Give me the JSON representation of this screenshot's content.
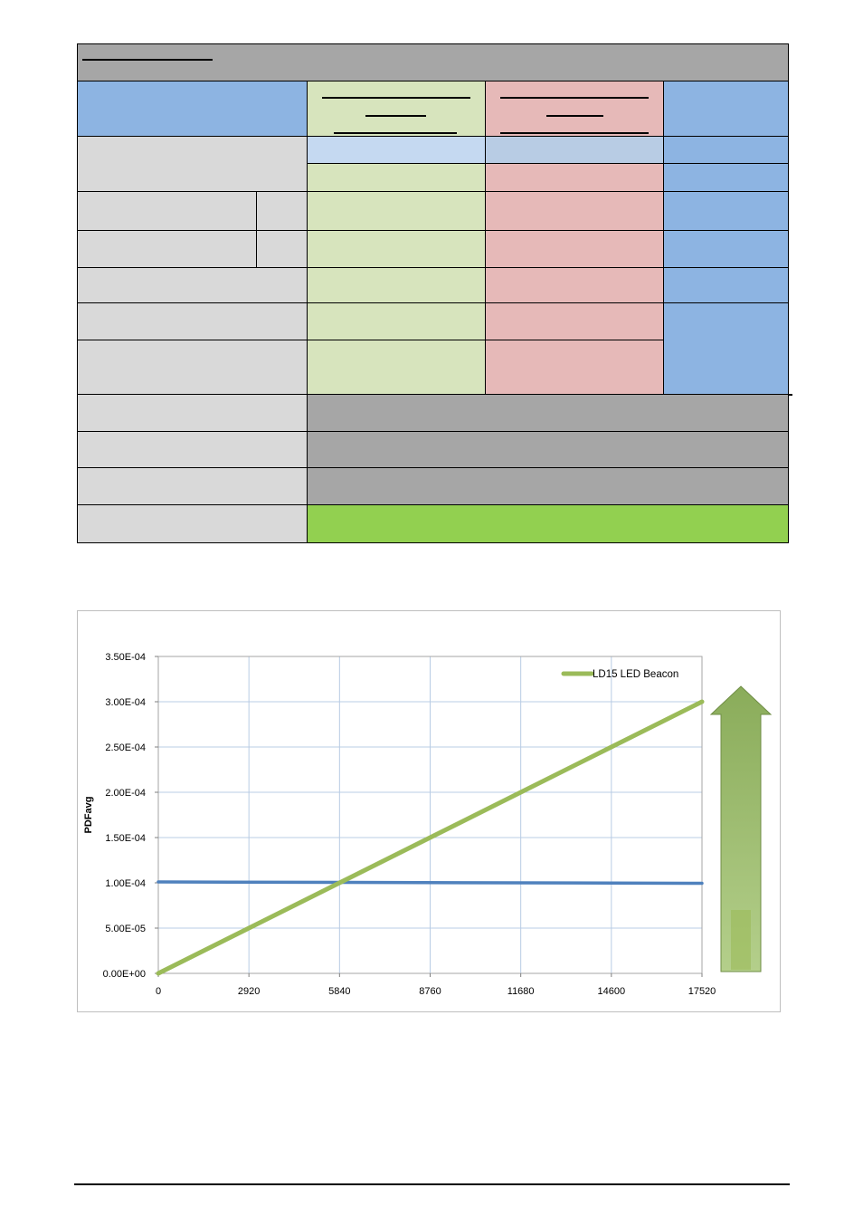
{
  "chart_data": {
    "type": "line",
    "title": "",
    "xlabel": "",
    "ylabel": "PDFavg",
    "x_ticks": [
      "0",
      "2920",
      "5840",
      "8760",
      "11680",
      "14600",
      "17520"
    ],
    "y_ticks": [
      "0.00E+00",
      "5.00E-05",
      "1.00E-04",
      "1.50E-04",
      "2.00E-04",
      "2.50E-04",
      "3.00E-04",
      "3.50E-04"
    ],
    "xlim": [
      0,
      17520
    ],
    "ylim": [
      0,
      0.00035
    ],
    "grid": true,
    "legend_position": "top-right",
    "series": [
      {
        "name": "LD15 LED Beacon",
        "color": "#9bbb59",
        "x": [
          0,
          2920,
          5840,
          8760,
          11680,
          14600,
          17520
        ],
        "y": [
          0,
          5e-05,
          0.0001,
          0.00015,
          0.0002,
          0.00025,
          0.0003
        ]
      },
      {
        "color": "#4f81bd",
        "x": [
          0,
          17520
        ],
        "y": [
          0.000101,
          9.95e-05
        ]
      }
    ],
    "annotation": {
      "shape": "up-arrow",
      "color": "#9bbb59"
    }
  }
}
